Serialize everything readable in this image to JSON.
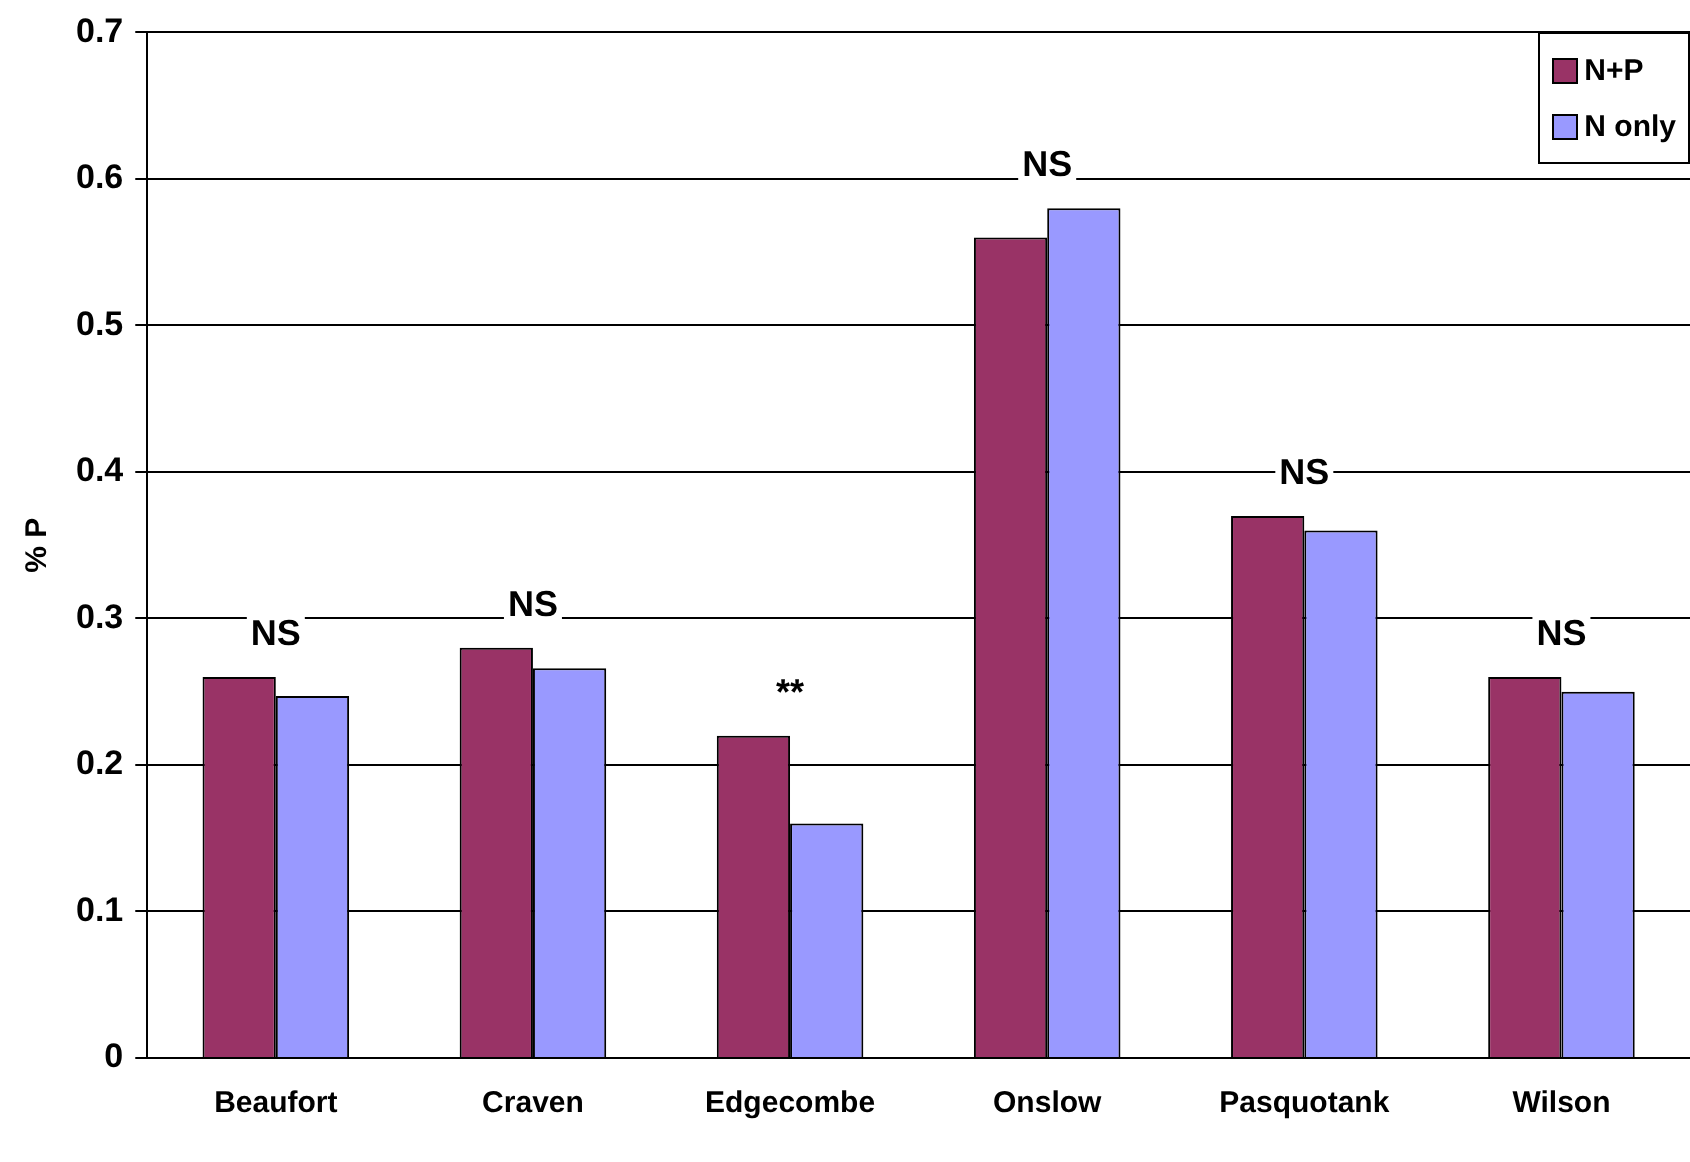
{
  "chart_data": {
    "type": "bar",
    "ylabel": "% P",
    "categories": [
      "Beaufort",
      "Craven",
      "Edgecombe",
      "Onslow",
      "Pasquotank",
      "Wilson"
    ],
    "series": [
      {
        "name": "N+P",
        "color": "#993366",
        "values": [
          0.26,
          0.28,
          0.22,
          0.56,
          0.37,
          0.26
        ]
      },
      {
        "name": "N only",
        "color": "#9999ff",
        "values": [
          0.247,
          0.266,
          0.16,
          0.58,
          0.36,
          0.25
        ]
      }
    ],
    "ylim": [
      0,
      0.7
    ],
    "yticks": [
      0,
      0.1,
      0.2,
      0.3,
      0.4,
      0.5,
      0.6,
      0.7
    ],
    "grid": "y",
    "legend": "top right",
    "annotations": [
      "NS",
      "NS",
      "**",
      "NS",
      "NS",
      "NS"
    ]
  }
}
